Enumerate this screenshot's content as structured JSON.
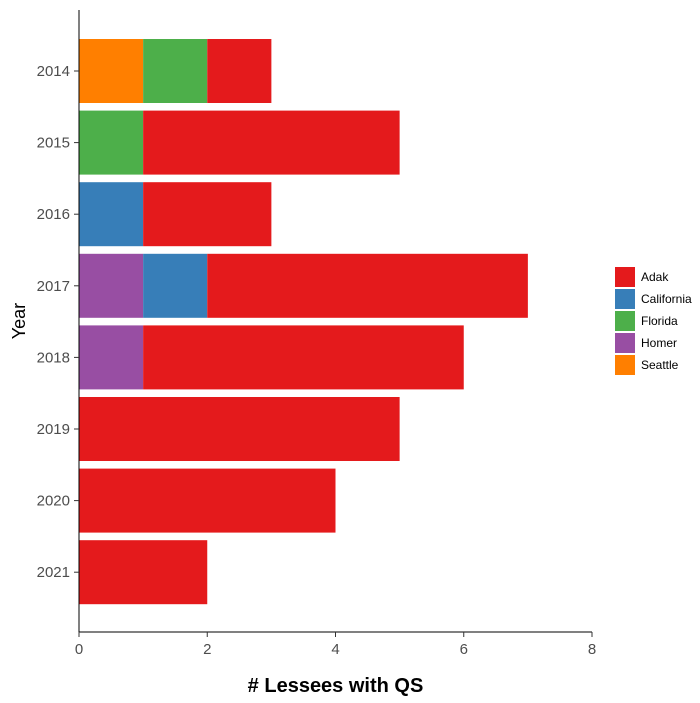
{
  "chart_data": {
    "type": "bar",
    "orientation": "horizontal",
    "stacked": true,
    "title": "",
    "xlabel": "# Lessees with QS",
    "ylabel": "Year",
    "categories": [
      "2014",
      "2015",
      "2016",
      "2017",
      "2018",
      "2019",
      "2020",
      "2021"
    ],
    "xlim": [
      0,
      8
    ],
    "x_ticks": [
      0,
      2,
      4,
      6,
      8
    ],
    "stack_order": [
      "Seattle",
      "Homer",
      "Florida",
      "California",
      "Adak"
    ],
    "series": [
      {
        "name": "Adak",
        "color": "#E41A1C",
        "values": [
          1,
          4,
          2,
          5,
          5,
          5,
          4,
          2
        ]
      },
      {
        "name": "California",
        "color": "#377EB8",
        "values": [
          0,
          0,
          1,
          1,
          0,
          0,
          0,
          0
        ]
      },
      {
        "name": "Florida",
        "color": "#4DAF4A",
        "values": [
          1,
          1,
          0,
          0,
          0,
          0,
          0,
          0
        ]
      },
      {
        "name": "Homer",
        "color": "#984EA3",
        "values": [
          0,
          0,
          0,
          1,
          1,
          0,
          0,
          0
        ]
      },
      {
        "name": "Seattle",
        "color": "#FF7F00",
        "values": [
          1,
          0,
          0,
          0,
          0,
          0,
          0,
          0
        ]
      }
    ],
    "grid": false,
    "legend_position": "right"
  }
}
